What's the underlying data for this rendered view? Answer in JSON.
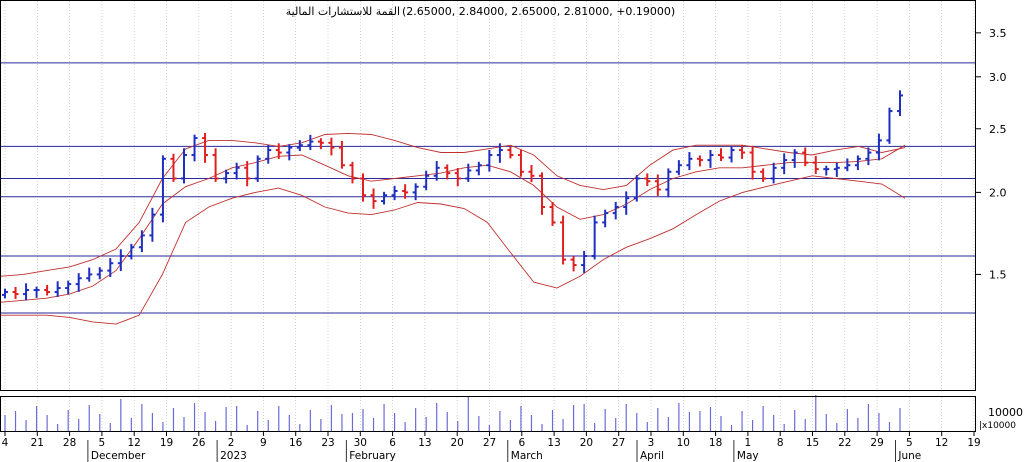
{
  "header": {
    "title": "القمة للاستشارات المالية",
    "ohlc_text": "(2.65000, 2.84000, 2.65000, 2.81000, +0.19000)"
  },
  "colors": {
    "up": "#1f2fbf",
    "down": "#e02020",
    "band": "#c03030",
    "hline": "#2a2a9a",
    "grid": "#b8b8b8",
    "volume": "#6b6bd6"
  },
  "chart_data": {
    "type": "ohlc",
    "scale": "log",
    "ylim": [
      1.0,
      3.9
    ],
    "y_ticks": [
      1.5,
      2.0,
      2.5,
      3.0,
      3.5
    ],
    "y_tick_labels": [
      "1.5",
      "2.0",
      "2.5",
      "3.0",
      "3.5"
    ],
    "x_day_labels": [
      "4",
      "21",
      "28",
      "5",
      "12",
      "19",
      "26",
      "2",
      "9",
      "16",
      "23",
      "30",
      "6",
      "13",
      "20",
      "27",
      "6",
      "13",
      "20",
      "27",
      "3",
      "10",
      "18",
      "1",
      "8",
      "15",
      "22",
      "29",
      "5",
      "12",
      "19"
    ],
    "x_month_labels": [
      "December",
      "2023",
      "February",
      "March",
      "April",
      "May",
      "June"
    ],
    "horizontal_lines": [
      3.15,
      2.35,
      2.1,
      1.97,
      1.6,
      1.31
    ],
    "series": [
      {
        "name": "",
        "values": [
          1.41,
          1.4,
          1.42,
          1.42,
          1.41,
          1.43,
          1.45,
          1.48,
          1.5,
          1.52,
          1.56,
          1.6,
          1.65,
          1.72,
          1.85,
          2.25,
          2.1,
          2.28,
          2.42,
          2.28,
          2.1,
          2.14,
          2.18,
          2.1,
          2.25,
          2.32,
          2.3,
          2.34,
          2.36,
          2.39,
          2.38,
          2.34,
          2.2,
          2.1,
          1.98,
          1.94,
          1.98,
          2.01,
          2.0,
          2.04,
          2.12,
          2.18,
          2.14,
          2.1,
          2.16,
          2.2,
          2.28,
          2.32,
          2.28,
          2.15,
          2.12,
          1.9,
          1.8,
          1.58,
          1.55,
          1.6,
          1.8,
          1.86,
          1.9,
          1.96,
          2.1,
          2.08,
          2.02,
          2.15,
          2.2,
          2.25,
          2.24,
          2.28,
          2.26,
          2.32,
          2.3,
          2.15,
          2.1,
          2.18,
          2.24,
          2.3,
          2.22,
          2.17,
          2.17,
          2.18,
          2.2,
          2.25,
          2.3,
          2.4,
          2.66,
          2.81
        ]
      }
    ],
    "bollinger_upper": [
      1.49,
      1.5,
      1.52,
      1.54,
      1.58,
      1.64,
      1.8,
      2.1,
      2.33,
      2.4,
      2.4,
      2.38,
      2.35,
      2.38,
      2.45,
      2.46,
      2.45,
      2.4,
      2.34,
      2.3,
      2.3,
      2.33,
      2.36,
      2.28,
      2.12,
      2.05,
      2.02,
      2.05,
      2.2,
      2.32,
      2.36,
      2.36,
      2.36,
      2.33,
      2.3,
      2.28,
      2.32,
      2.35,
      2.3,
      2.34
    ],
    "bollinger_middle": [
      1.36,
      1.37,
      1.38,
      1.4,
      1.44,
      1.52,
      1.7,
      1.92,
      2.04,
      2.1,
      2.18,
      2.22,
      2.27,
      2.28,
      2.2,
      2.12,
      2.08,
      2.1,
      2.12,
      2.14,
      2.18,
      2.2,
      2.15,
      2.05,
      1.9,
      1.82,
      1.85,
      1.92,
      2.02,
      2.1,
      2.15,
      2.18,
      2.18,
      2.2,
      2.22,
      2.22,
      2.22,
      2.23,
      2.25,
      2.36
    ],
    "bollinger_lower": [
      1.3,
      1.3,
      1.3,
      1.29,
      1.27,
      1.26,
      1.3,
      1.5,
      1.8,
      1.9,
      1.96,
      2.0,
      2.03,
      1.98,
      1.9,
      1.86,
      1.85,
      1.88,
      1.93,
      1.92,
      1.89,
      1.8,
      1.62,
      1.46,
      1.43,
      1.49,
      1.58,
      1.65,
      1.7,
      1.76,
      1.85,
      1.94,
      2.0,
      2.04,
      2.08,
      2.12,
      2.1,
      2.08,
      2.06,
      1.96
    ]
  }
}
